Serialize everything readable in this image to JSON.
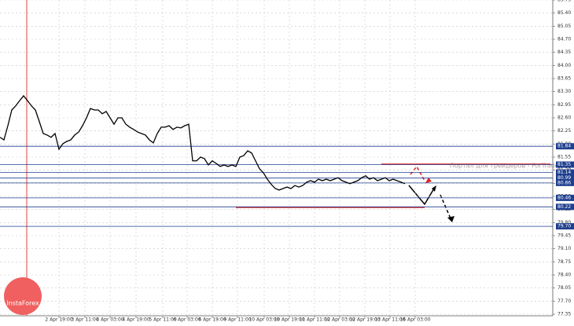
{
  "chart_data": {
    "type": "line",
    "values": [
      82.08,
      82.01,
      82.39,
      82.81,
      82.92,
      83.06,
      83.19,
      83.06,
      82.92,
      82.81,
      82.5,
      82.18,
      82.14,
      82.08,
      82.18,
      81.76,
      81.91,
      81.97,
      82.01,
      82.14,
      82.22,
      82.39,
      82.6,
      82.85,
      82.81,
      82.81,
      82.71,
      82.77,
      82.6,
      82.43,
      82.6,
      82.6,
      82.43,
      82.35,
      82.29,
      82.22,
      82.18,
      82.14,
      82.01,
      81.93,
      82.18,
      82.35,
      82.35,
      82.39,
      82.29,
      82.35,
      82.33,
      82.39,
      82.43,
      81.45,
      81.45,
      81.55,
      81.51,
      81.34,
      81.45,
      81.38,
      81.3,
      81.34,
      81.3,
      81.34,
      81.3,
      81.55,
      81.59,
      81.72,
      81.66,
      81.45,
      81.24,
      81.13,
      80.96,
      80.82,
      80.71,
      80.67,
      80.71,
      80.75,
      80.71,
      80.79,
      80.75,
      80.79,
      80.88,
      80.92,
      80.88,
      80.96,
      80.92,
      80.96,
      80.92,
      80.96,
      81.0,
      80.92,
      80.88,
      80.84,
      80.88,
      80.92,
      81.0,
      81.05,
      80.96,
      81.0,
      80.92,
      80.96,
      81.0,
      80.92,
      80.96,
      80.92,
      80.88,
      80.84
    ],
    "color": "#000000",
    "ylim": [
      77.35,
      85.75
    ],
    "yticks": [
      77.35,
      {
        "value": 77.7,
        "label": "77.70"
      },
      78.05,
      {
        "value": 78.4,
        "label": "78.40"
      },
      78.75,
      {
        "value": 79.1,
        "label": "79.10"
      },
      79.45,
      {
        "value": 79.8,
        "label": "79.80"
      },
      80.15,
      {
        "value": 80.5,
        "label": "80.50"
      },
      80.85,
      {
        "value": 81.2,
        "label": "81.20"
      },
      81.55,
      {
        "value": 81.9,
        "label": "81.90"
      },
      82.25,
      {
        "value": 82.6,
        "label": "82.60"
      },
      82.95,
      {
        "value": 83.3,
        "label": "83.30"
      },
      83.65,
      {
        "value": 84.0,
        "label": "84.00"
      },
      84.35,
      {
        "value": 84.7,
        "label": "84.70"
      },
      85.05,
      {
        "value": 85.4,
        "label": "85.40"
      },
      85.75
    ],
    "xticks": [
      {
        "value": 15,
        "label": "2 Apr 19:00"
      },
      {
        "value": 21.6,
        "label": "3 Apr 11:00"
      },
      {
        "value": 28,
        "label": "4 Apr 03:00"
      },
      {
        "value": 34.6,
        "label": "4 Apr 19:00"
      },
      {
        "value": 41.4,
        "label": "5 Apr 11:00"
      },
      {
        "value": 47.6,
        "label": "6 Apr 03:00"
      },
      {
        "value": 54,
        "label": "6 Apr 19:00"
      },
      {
        "value": 60.4,
        "label": "9 Apr 11:00"
      },
      {
        "value": 67.2,
        "label": "10 Apr 03:00"
      },
      {
        "value": 73.6,
        "label": "10 Apr 19:00"
      },
      {
        "value": 80,
        "label": "11 Apr 11:00"
      },
      {
        "value": 86.4,
        "label": "12 Apr 03:00"
      },
      {
        "value": 92.8,
        "label": "12 Apr 19:00"
      },
      {
        "value": 99.2,
        "label": "13 Apr 11:00"
      },
      {
        "value": 105.6,
        "label": "16 Apr 03:00"
      }
    ],
    "levels": [
      81.84,
      81.35,
      81.14,
      80.99,
      80.86,
      80.46,
      80.22,
      {
        "value": 79.7,
        "label": "79.70"
      }
    ],
    "level_color": "#1f3f8f",
    "grid": true,
    "watermark": "Портал для трейдеров - ForTrader",
    "logo": "InstaForex"
  }
}
